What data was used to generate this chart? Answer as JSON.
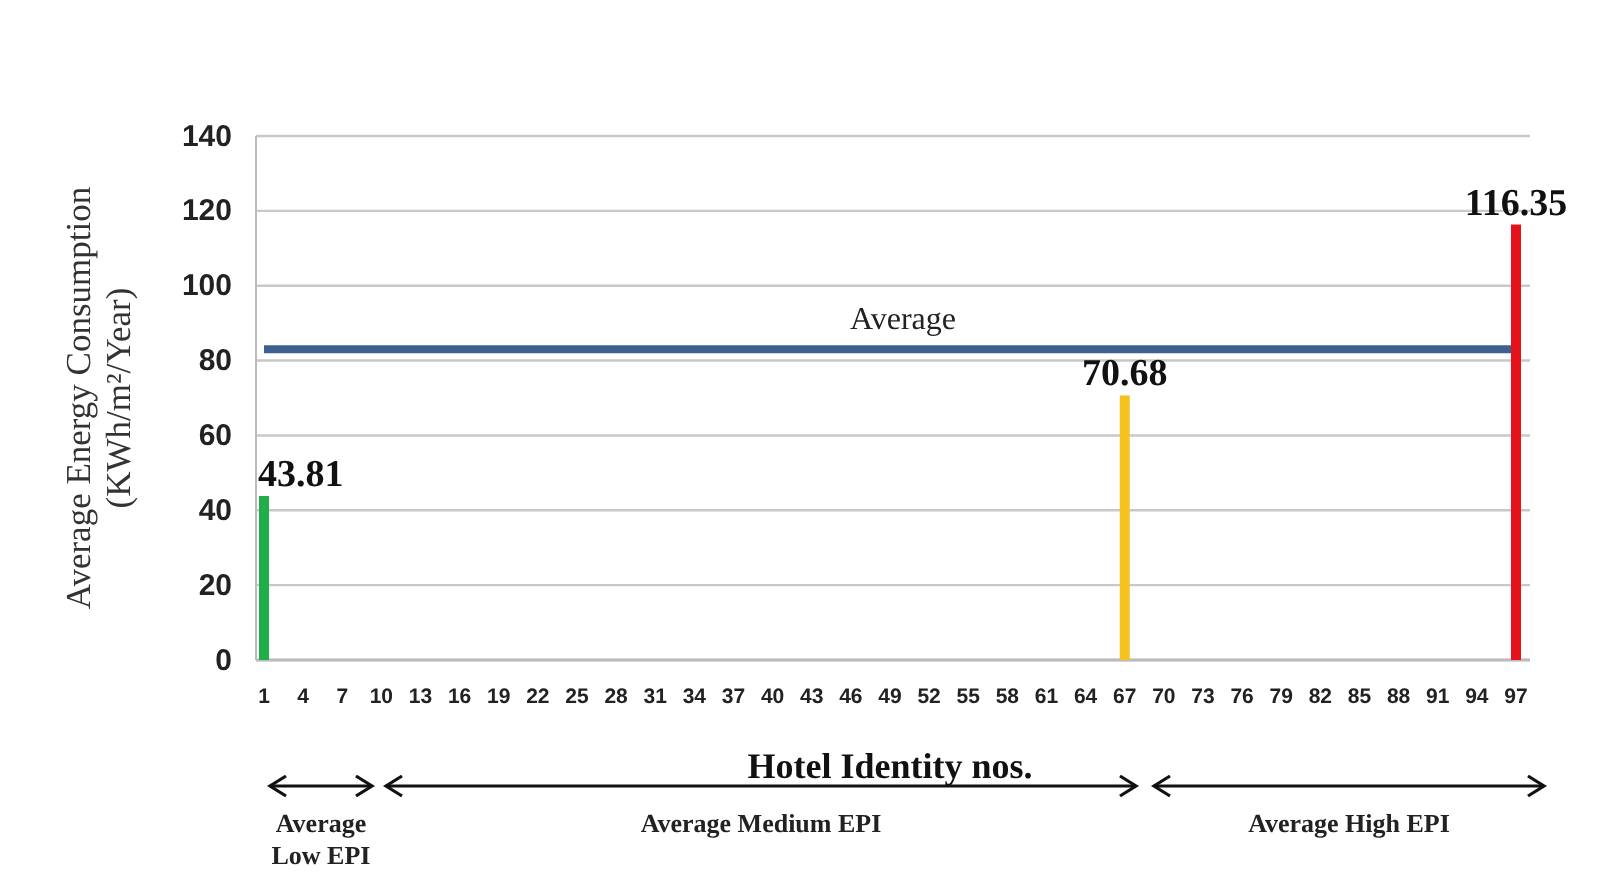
{
  "chart_data": {
    "type": "bar",
    "categories": [
      "1",
      "4",
      "7",
      "10",
      "13",
      "16",
      "19",
      "22",
      "25",
      "28",
      "31",
      "34",
      "37",
      "40",
      "43",
      "46",
      "49",
      "52",
      "55",
      "58",
      "61",
      "64",
      "67",
      "70",
      "73",
      "76",
      "79",
      "82",
      "85",
      "88",
      "91",
      "94",
      "97"
    ],
    "values": [
      43.81,
      null,
      null,
      null,
      null,
      null,
      null,
      null,
      null,
      null,
      null,
      null,
      null,
      null,
      null,
      null,
      null,
      null,
      null,
      null,
      null,
      null,
      70.68,
      null,
      null,
      null,
      null,
      null,
      null,
      null,
      null,
      null,
      116.35
    ],
    "colors": [
      "#1fae4b",
      null,
      null,
      null,
      null,
      null,
      null,
      null,
      null,
      null,
      null,
      null,
      null,
      null,
      null,
      null,
      null,
      null,
      null,
      null,
      null,
      null,
      "#f5c21e",
      null,
      null,
      null,
      null,
      null,
      null,
      null,
      null,
      null,
      "#e5111b"
    ],
    "xlabel": "Hotel Identity nos.",
    "ylabel": "Average Energy Consumption\n(KWh/m²/Year)",
    "ylim": [
      0,
      140
    ],
    "yticks": [
      0,
      20,
      40,
      60,
      80,
      100,
      120,
      140
    ],
    "grid": "y",
    "data_labels": true,
    "ref_lines": [
      {
        "axis": "y",
        "value": 83,
        "label": "Average",
        "color": "#3d6090"
      }
    ],
    "annotations": [
      "Average\nLow EPI",
      "Average Medium EPI",
      "Average High EPI"
    ]
  }
}
